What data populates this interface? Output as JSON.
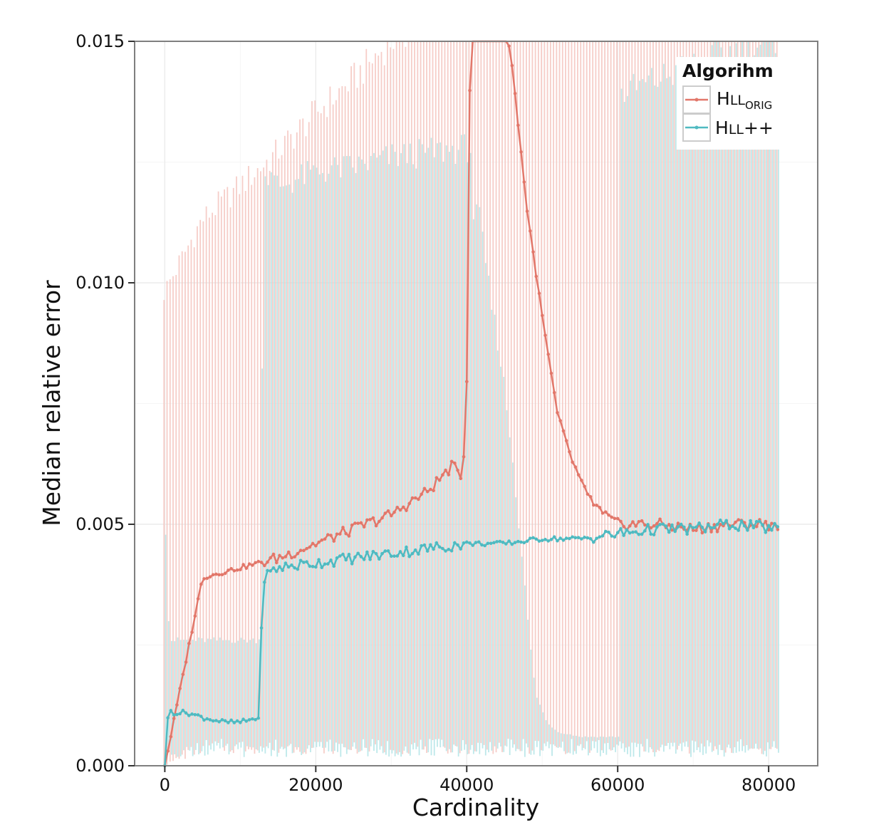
{
  "colors": {
    "hll_orig": "#E2776A",
    "hll_orig_band": "#F4C4BE",
    "hll_pp": "#4FBAC1",
    "hll_pp_band": "#B2E4E6",
    "grid": "#EBEBEB",
    "frame": "#7F7F7F"
  },
  "chart_data": {
    "type": "line",
    "xlabel": "Cardinality",
    "ylabel": "Median relative error",
    "xlim": [
      -4000,
      86500
    ],
    "ylim": [
      0,
      0.015
    ],
    "x_ticks": [
      0,
      20000,
      40000,
      60000,
      80000
    ],
    "x_tick_labels": [
      "0",
      "20000",
      "40000",
      "60000",
      "80000"
    ],
    "y_ticks": [
      0,
      0.005,
      0.01,
      0.015
    ],
    "y_tick_labels": [
      "0.000",
      "0.005",
      "0.010",
      "0.015"
    ],
    "grid": true,
    "legend": {
      "title": "Algorihm",
      "placement": "top-right",
      "entries": [
        {
          "main": "H",
          "small": "LL",
          "sub": "ORIG"
        },
        {
          "main": "H",
          "small": "LL",
          "sub": "",
          "suffix": "++"
        }
      ]
    },
    "series": [
      {
        "key": "hll_orig",
        "x": [
          0,
          5000,
          10000,
          15000,
          20000,
          25000,
          30000,
          35000,
          38000,
          39500,
          40000,
          40500,
          45000,
          46000,
          48000,
          50000,
          52000,
          54000,
          56000,
          58000,
          60000,
          65000,
          70000,
          75000,
          81500
        ],
        "median": [
          0,
          0.0039,
          0.0041,
          0.0043,
          0.0046,
          0.0049,
          0.0052,
          0.0057,
          0.0062,
          0.006,
          0.008,
          0.0155,
          0.0155,
          0.0145,
          0.0115,
          0.0093,
          0.0073,
          0.0063,
          0.0056,
          0.0052,
          0.005,
          0.005,
          0.0049,
          0.005,
          0.005
        ],
        "upper": [
          0.0098,
          0.0113,
          0.012,
          0.0127,
          0.0135,
          0.0142,
          0.015,
          0.0155,
          0.0155,
          0.0155,
          0.0155,
          0.0155,
          0.0155,
          0.0155,
          0.0155,
          0.0155,
          0.0155,
          0.0155,
          0.0155,
          0.0155,
          0.0155,
          0.0155,
          0.0155,
          0.0155,
          0.0155
        ],
        "lower": [
          0,
          0.0004,
          0.0004,
          0.0004,
          0.0004,
          0.0004,
          0.0004,
          0.0004,
          0.0004,
          0.0004,
          0.0004,
          0.0004,
          0.0004,
          0.0004,
          0.0004,
          0.0004,
          0.0004,
          0.0004,
          0.0004,
          0.0004,
          0.0004,
          0.0004,
          0.0004,
          0.0004,
          0.0004
        ]
      },
      {
        "key": "hll_pp",
        "x": [
          0,
          500,
          1000,
          3000,
          5000,
          8000,
          10000,
          12500,
          13000,
          15000,
          20000,
          25000,
          30000,
          35000,
          40000,
          45000,
          50000,
          55000,
          60000,
          65000,
          70000,
          75000,
          81500
        ],
        "median": [
          0,
          0.0012,
          0.0011,
          0.0011,
          0.001,
          0.0009,
          0.0009,
          0.001,
          0.0039,
          0.0041,
          0.0042,
          0.0043,
          0.0044,
          0.0045,
          0.0046,
          0.0046,
          0.0047,
          0.0047,
          0.0048,
          0.0049,
          0.0049,
          0.005,
          0.0049
        ],
        "upper": [
          0.0049,
          0.0026,
          0.0026,
          0.0026,
          0.0026,
          0.0026,
          0.0026,
          0.0026,
          0.0123,
          0.012,
          0.0123,
          0.0124,
          0.0126,
          0.0127,
          0.0128,
          0.0128,
          0.0133,
          0.0137,
          0.0139,
          0.0142,
          0.0145,
          0.0148,
          0.015
        ],
        "lower": [
          0,
          0.0003,
          0.0003,
          0.0003,
          0.0003,
          0.0003,
          0.0003,
          0.0003,
          0.0003,
          0.0003,
          0.0003,
          0.0003,
          0.0003,
          0.0003,
          0.0003,
          0.0003,
          0.0003,
          0.0003,
          0.0003,
          0.0003,
          0.0003,
          0.0003,
          0.0003
        ],
        "upper_override": [
          [
            41500,
            0.0114
          ],
          [
            43000,
            0.0097
          ],
          [
            44000,
            0.0088
          ],
          [
            45000,
            0.0077
          ],
          [
            46000,
            0.0063
          ],
          [
            47000,
            0.0047
          ],
          [
            48000,
            0.003
          ],
          [
            49000,
            0.0015
          ],
          [
            50500,
            0.0009
          ],
          [
            52000,
            0.0007
          ],
          [
            55000,
            0.0006
          ]
        ]
      }
    ]
  }
}
